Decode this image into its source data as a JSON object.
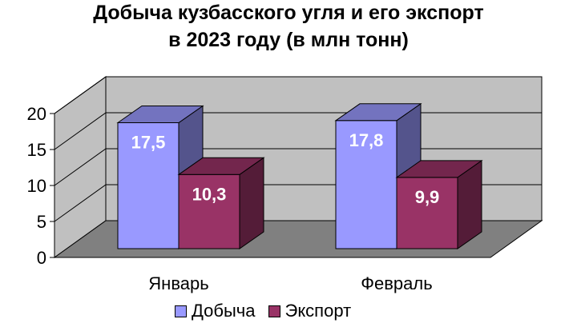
{
  "chart_data": {
    "type": "bar",
    "title_line1": "Добыча кузбасского угля и его экспорт",
    "title_line2": "в 2023 году (в млн тонн)",
    "categories": [
      "Январь",
      "Февраль"
    ],
    "series": [
      {
        "name": "Добыча",
        "values": [
          17.5,
          17.8
        ],
        "labels": [
          "17,5",
          "17,8"
        ],
        "color": "#9999ff"
      },
      {
        "name": "Экспорт",
        "values": [
          10.3,
          9.9
        ],
        "labels": [
          "10,3",
          "9,9"
        ],
        "color": "#993366"
      }
    ],
    "ylim": [
      0,
      20
    ],
    "yticks": [
      "0",
      "5",
      "10",
      "15",
      "20"
    ],
    "grid": true,
    "legend_position": "bottom",
    "style": "3d"
  }
}
